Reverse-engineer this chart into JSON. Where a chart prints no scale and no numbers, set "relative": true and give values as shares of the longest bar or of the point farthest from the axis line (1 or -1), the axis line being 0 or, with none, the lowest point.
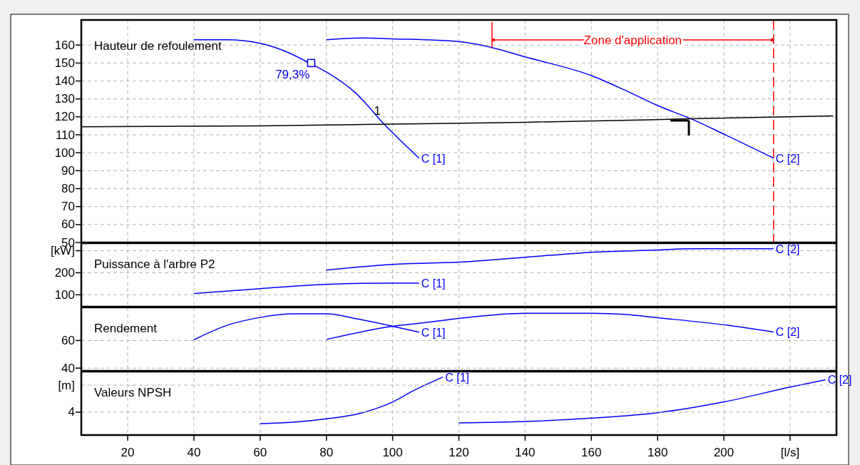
{
  "chart_data": [
    {
      "type": "line",
      "title": "Hauteur de refoulement",
      "xlim": [
        6,
        234
      ],
      "ylim": [
        50,
        174
      ],
      "yticks": [
        50,
        60,
        70,
        80,
        90,
        100,
        110,
        120,
        130,
        140,
        150,
        160
      ],
      "grid": true,
      "tick_labels": "y",
      "series": [
        {
          "name": "C [1]",
          "color": "#0000ff",
          "x": [
            40,
            50,
            60,
            67,
            75.4,
            80,
            89,
            97.4,
            108
          ],
          "values": [
            163,
            163,
            161,
            157,
            149.5,
            145,
            133,
            116,
            97
          ]
        },
        {
          "name": "C [2]",
          "color": "#0000ff",
          "x": [
            80,
            90,
            100,
            120,
            130,
            140,
            160,
            170,
            180,
            190,
            200,
            215
          ],
          "values": [
            163,
            164,
            163.5,
            162,
            158.6,
            153.4,
            143,
            135,
            126.3,
            119,
            110.4,
            97
          ]
        },
        {
          "color": "#000000",
          "x": [
            6,
            60,
            100,
            140,
            180,
            190,
            233
          ],
          "values": [
            114.5,
            115,
            116,
            117,
            118.5,
            119,
            120.5
          ]
        },
        {
          "type": "scatter",
          "marker": "square",
          "color": "#0000ff",
          "x": [
            75.4
          ],
          "values": [
            150
          ]
        }
      ],
      "ref_lines": [
        {
          "axis": "x",
          "value": 130,
          "color": "#ff0000",
          "line_style": "solid"
        },
        {
          "axis": "x",
          "value": 215,
          "color": "#ff0000",
          "line_style": "dashed"
        }
      ],
      "annotations": [
        "Zone d'application",
        "79,3%",
        {
          "text": "1",
          "x": 96.5,
          "y": 117
        }
      ]
    },
    {
      "type": "line",
      "title": "Puissance à l'arbre P2",
      "xlim": [
        6,
        234
      ],
      "ylim": [
        46,
        334
      ],
      "yticks": [
        100,
        200,
        {
          "value": 300,
          "label": "[kW]"
        }
      ],
      "grid": true,
      "tick_labels": "y",
      "series": [
        {
          "name": "C [1]",
          "color": "#0000ff",
          "x": [
            40,
            60,
            80,
            100,
            108
          ],
          "values": [
            106,
            128,
            147,
            153,
            153
          ]
        },
        {
          "name": "C [2]",
          "color": "#0000ff",
          "x": [
            80,
            100,
            120,
            140,
            160,
            180,
            190,
            215
          ],
          "values": [
            212,
            238,
            248,
            270,
            293,
            303,
            309,
            309
          ]
        }
      ]
    },
    {
      "type": "line",
      "title": "Rendement",
      "xlim": [
        6,
        234
      ],
      "ylim": [
        38,
        84
      ],
      "yticks": [
        40,
        60
      ],
      "grid": true,
      "tick_labels": "y",
      "series": [
        {
          "name": "C [1]",
          "color": "#0000ff",
          "x": [
            40,
            50,
            60,
            70,
            80,
            90,
            100,
            108
          ],
          "values": [
            60.5,
            71,
            76.7,
            79.3,
            79.3,
            75.3,
            70.3,
            66
          ]
        },
        {
          "name": "C [2]",
          "color": "#0000ff",
          "x": [
            80,
            100,
            110,
            120,
            140,
            160,
            170,
            180,
            200,
            215
          ],
          "values": [
            60.8,
            70.3,
            73,
            76,
            79.7,
            79.7,
            78.9,
            76.5,
            71.4,
            66.2
          ]
        }
      ]
    },
    {
      "type": "line",
      "title": "Valeurs NPSH",
      "relative": true,
      "ylabel": "[m]",
      "xlim": [
        6,
        234
      ],
      "xticks": [
        20,
        40,
        60,
        80,
        100,
        120,
        140,
        160,
        180,
        200,
        {
          "value": 220,
          "label": "[l/s]"
        }
      ],
      "grid": "x",
      "series": [
        {
          "name": "C [1]",
          "color": "#0000ff",
          "x": [
            60,
            70,
            80,
            90,
            100,
            106,
            115.2
          ],
          "values": [
            0.198,
            0.221,
            0.279,
            0.372,
            0.57,
            0.756,
            1
          ]
        },
        {
          "name": "C [2]",
          "color": "#0000ff",
          "x": [
            120,
            140,
            160,
            180,
            200,
            220,
            230.7
          ],
          "values": [
            0.209,
            0.233,
            0.291,
            0.384,
            0.57,
            0.826,
            0.953
          ]
        }
      ],
      "annotations": [
        "4"
      ]
    }
  ]
}
